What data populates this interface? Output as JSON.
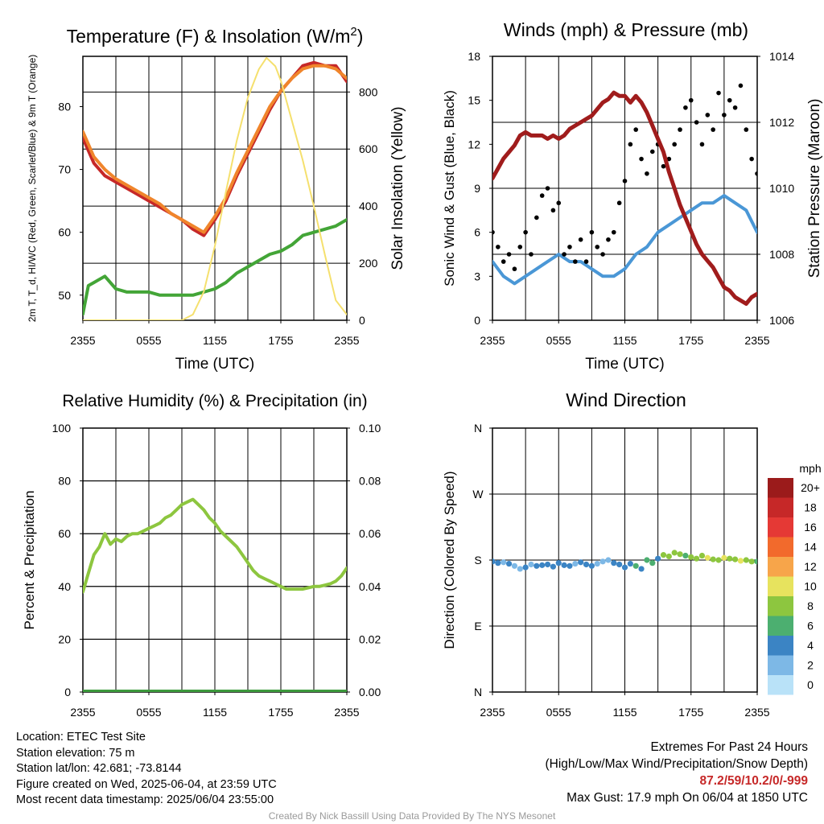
{
  "colors": {
    "temp": "#c62828",
    "windchill": "#d32f2f",
    "temp9m": "#f0852b",
    "dewpoint": "#43a537",
    "solar": "#f5e06e",
    "wind": "#4a97d6",
    "gust": "#000000",
    "pressure": "#a01c1c",
    "rh": "#8dc63f",
    "precip": "#3d9a3d"
  },
  "chart_data": [
    {
      "id": "temperature",
      "type": "line",
      "title": "Temperature (F) & Insolation (W/m²)",
      "xlabel": "Time (UTC)",
      "ylabel_left": "2m T, T_d, HI/WC (Red, Green, Scarlet/Blue) & 9m T (Orange)",
      "ylabel_right": "Solar Insolation (Yellow)",
      "x_ticks": [
        "2355",
        "0555",
        "1155",
        "1755",
        "2355"
      ],
      "x_hours": [
        0,
        24
      ],
      "ylim_left": [
        46,
        88
      ],
      "yticks_left": [
        50,
        60,
        70,
        80
      ],
      "ylim_right": [
        0,
        925
      ],
      "yticks_right": [
        0,
        200,
        400,
        600,
        800
      ],
      "series": [
        {
          "name": "2m T",
          "color_key": "temp",
          "axis": "left",
          "x": [
            0,
            1,
            2,
            3,
            4,
            5,
            6,
            7,
            8,
            9,
            10,
            11,
            12,
            13,
            14,
            15,
            16,
            17,
            18,
            19,
            20,
            21,
            22,
            23,
            24
          ],
          "y": [
            75,
            71,
            69,
            68,
            67,
            66,
            65,
            64,
            63,
            62,
            60.5,
            59.5,
            62,
            65,
            69,
            72.5,
            76,
            79.5,
            82.5,
            84.5,
            86.5,
            87,
            86.5,
            86.5,
            84
          ]
        },
        {
          "name": "9m T",
          "color_key": "temp9m",
          "axis": "left",
          "x": [
            0,
            1,
            2,
            3,
            4,
            5,
            6,
            7,
            8,
            9,
            10,
            11,
            12,
            13,
            14,
            15,
            16,
            17,
            18,
            19,
            20,
            21,
            22,
            23,
            24
          ],
          "y": [
            76,
            72,
            70,
            68.5,
            67.5,
            66.5,
            65.5,
            64.5,
            63,
            62,
            61,
            60,
            62.5,
            65.5,
            69.5,
            73,
            76.5,
            80,
            82.5,
            84.5,
            86,
            86.5,
            86.5,
            86,
            84.5
          ]
        },
        {
          "name": "2m Td",
          "color_key": "dewpoint",
          "axis": "left",
          "x": [
            0,
            0.5,
            1,
            2,
            3,
            4,
            5,
            6,
            7,
            8,
            9,
            10,
            11,
            12,
            13,
            14,
            15,
            16,
            17,
            18,
            19,
            20,
            21,
            22,
            23,
            24
          ],
          "y": [
            47,
            51.5,
            52,
            53,
            51,
            50.5,
            50.5,
            50.5,
            50,
            50,
            50,
            50,
            50.5,
            51,
            52,
            53.5,
            54.5,
            55.5,
            56.5,
            57,
            58,
            59.5,
            60,
            60.5,
            61,
            62
          ]
        },
        {
          "name": "Solar Insolation",
          "color_key": "solar",
          "axis": "right",
          "x": [
            0,
            9,
            10,
            11,
            12,
            13,
            14,
            15,
            16,
            16.7,
            17.5,
            18,
            19,
            20,
            21,
            22,
            23,
            24
          ],
          "y": [
            0,
            0,
            20,
            100,
            260,
            450,
            630,
            780,
            880,
            920,
            890,
            840,
            700,
            560,
            400,
            230,
            70,
            20
          ]
        }
      ]
    },
    {
      "id": "winds",
      "type": "line",
      "title": "Winds (mph) & Pressure (mb)",
      "xlabel": "Time (UTC)",
      "ylabel_left": "Sonic Wind & Gust (Blue, Black)",
      "ylabel_right": "Station Pressure (Maroon)",
      "x_ticks": [
        "2355",
        "0555",
        "1155",
        "1755",
        "2355"
      ],
      "ylim_left": [
        0,
        18
      ],
      "yticks_left": [
        0,
        3,
        6,
        9,
        12,
        15,
        18
      ],
      "ylim_right": [
        1006,
        1014
      ],
      "yticks_right": [
        1006,
        1008,
        1010,
        1012,
        1014
      ],
      "series": [
        {
          "name": "Sonic Wind",
          "color_key": "wind",
          "axis": "left",
          "x": [
            0,
            1,
            2,
            3,
            4,
            5,
            6,
            7,
            8,
            9,
            10,
            11,
            12,
            13,
            14,
            15,
            16,
            17,
            18,
            19,
            20,
            21,
            22,
            23,
            24
          ],
          "y": [
            4,
            3,
            2.5,
            3,
            3.5,
            4,
            4.5,
            4,
            4,
            3.5,
            3,
            3,
            3.5,
            4.5,
            5,
            6,
            6.5,
            7,
            7.5,
            8,
            8,
            8.5,
            8,
            7.5,
            6
          ]
        },
        {
          "name": "Gust",
          "color_key": "gust",
          "axis": "left",
          "style": "dots",
          "x": [
            0,
            0.5,
            1,
            1.5,
            2,
            2.5,
            3,
            3.5,
            4,
            4.5,
            5,
            5.5,
            6,
            6.5,
            7,
            7.5,
            8,
            8.5,
            9,
            9.5,
            10,
            10.5,
            11,
            11.5,
            12,
            12.5,
            13,
            13.5,
            14,
            14.5,
            15,
            15.5,
            16,
            16.5,
            17,
            17.5,
            18,
            18.5,
            19,
            19.5,
            20,
            20.5,
            21,
            21.5,
            22,
            22.5,
            23,
            23.5,
            24
          ],
          "y": [
            6,
            5,
            4,
            4.5,
            3.5,
            5,
            6,
            4.5,
            7,
            8.5,
            9,
            7.5,
            8,
            4.5,
            5,
            4,
            5.5,
            4,
            6,
            5,
            4.5,
            5.5,
            6,
            8,
            9.5,
            12,
            13,
            11,
            10,
            11.5,
            12,
            10.5,
            11,
            12,
            13,
            14.5,
            15,
            13.5,
            12,
            14,
            13,
            15.5,
            14,
            15,
            14.5,
            16,
            13,
            11,
            10
          ]
        },
        {
          "name": "Station Pressure",
          "color_key": "pressure",
          "axis": "right",
          "x": [
            0,
            0.5,
            1,
            1.5,
            2,
            2.5,
            3,
            3.5,
            4,
            4.5,
            5,
            5.5,
            6,
            6.5,
            7,
            7.5,
            8,
            8.5,
            9,
            9.5,
            10,
            10.5,
            11,
            11.5,
            12,
            12.5,
            13,
            13.5,
            14,
            14.5,
            15,
            15.5,
            16,
            16.5,
            17,
            17.5,
            18,
            18.5,
            19,
            19.5,
            20,
            20.5,
            21,
            21.5,
            22,
            22.5,
            23,
            23.5,
            24
          ],
          "y": [
            1010.3,
            1010.6,
            1010.9,
            1011.1,
            1011.3,
            1011.6,
            1011.7,
            1011.6,
            1011.6,
            1011.6,
            1011.5,
            1011.6,
            1011.5,
            1011.6,
            1011.8,
            1011.9,
            1012.0,
            1012.1,
            1012.2,
            1012.4,
            1012.6,
            1012.7,
            1012.9,
            1012.8,
            1012.8,
            1012.6,
            1012.8,
            1012.6,
            1012.3,
            1011.9,
            1011.5,
            1011.1,
            1010.5,
            1010.0,
            1009.5,
            1009.1,
            1008.7,
            1008.3,
            1008.0,
            1007.8,
            1007.6,
            1007.3,
            1007.0,
            1006.9,
            1006.7,
            1006.6,
            1006.5,
            1006.7,
            1006.8
          ]
        }
      ]
    },
    {
      "id": "humidity",
      "type": "line",
      "title": "Relative Humidity (%) & Precipitation (in)",
      "ylabel_left": "Percent & Precipitation",
      "x_ticks": [
        "2355",
        "0555",
        "1155",
        "1755",
        "2355"
      ],
      "ylim_left": [
        0,
        100
      ],
      "yticks_left": [
        0,
        20,
        40,
        60,
        80,
        100
      ],
      "ylim_right": [
        0,
        0.1
      ],
      "yticks_right": [
        "0.00",
        "0.02",
        "0.04",
        "0.06",
        "0.08",
        "0.10"
      ],
      "series": [
        {
          "name": "Relative Humidity",
          "color_key": "rh",
          "axis": "left",
          "x": [
            0,
            0.5,
            1,
            1.5,
            2,
            2.5,
            3,
            3.5,
            4,
            4.5,
            5,
            5.5,
            6,
            6.5,
            7,
            7.5,
            8,
            8.5,
            9,
            9.5,
            10,
            10.5,
            11,
            11.5,
            12,
            12.5,
            13,
            13.5,
            14,
            14.5,
            15,
            15.5,
            16,
            16.5,
            17,
            17.5,
            18,
            18.5,
            19,
            19.5,
            20,
            20.5,
            21,
            21.5,
            22,
            22.5,
            23,
            23.5,
            24
          ],
          "y": [
            38,
            45,
            52,
            55,
            60,
            56,
            58,
            57,
            59,
            60,
            60,
            61,
            62,
            63,
            64,
            66,
            67,
            69,
            71,
            72,
            73,
            71,
            69,
            66,
            64,
            61,
            59,
            57,
            55,
            52,
            49,
            46,
            44,
            43,
            42,
            41,
            40,
            39,
            39,
            39,
            39,
            39.5,
            40,
            40,
            40.5,
            41,
            42,
            44,
            47
          ]
        },
        {
          "name": "Precipitation",
          "color_key": "precip",
          "axis": "right",
          "x": [
            0,
            24
          ],
          "y": [
            0,
            0
          ]
        }
      ]
    },
    {
      "id": "wind_direction",
      "type": "scatter",
      "title": "Wind Direction",
      "ylabel_left": "Direction (Colored By Speed)",
      "x_ticks": [
        "2355",
        "0555",
        "1155",
        "1755",
        "2355"
      ],
      "y_ticks": [
        "N",
        "E",
        "S",
        "W",
        "N"
      ],
      "ylim": [
        0,
        360
      ],
      "legend_title": "mph",
      "legend_labels": [
        "20+",
        "18",
        "16",
        "14",
        "12",
        "10",
        "8",
        "6",
        "4",
        "2",
        "0"
      ],
      "legend_colors": [
        "#9b1b1b",
        "#c62828",
        "#e53935",
        "#f26a2c",
        "#f7a54a",
        "#e7e35e",
        "#8dc63f",
        "#4caf70",
        "#3b84c4",
        "#7db8e6",
        "#b9e2f8"
      ],
      "series": [
        {
          "name": "Direction",
          "axis": "left",
          "x": [
            0,
            0.5,
            1,
            1.5,
            2,
            2.5,
            3,
            3.5,
            4,
            4.5,
            5,
            5.5,
            6,
            6.5,
            7,
            7.5,
            8,
            8.5,
            9,
            9.5,
            10,
            10.5,
            11,
            11.5,
            12,
            12.5,
            13,
            13.5,
            14,
            14.5,
            15,
            15.5,
            16,
            16.5,
            17,
            17.5,
            18,
            18.5,
            19,
            19.5,
            20,
            20.5,
            21,
            21.5,
            22,
            22.5,
            23,
            23.5,
            24
          ],
          "y": [
            178,
            176,
            177,
            175,
            172,
            168,
            170,
            174,
            172,
            173,
            174,
            171,
            176,
            173,
            172,
            175,
            177,
            174,
            172,
            175,
            178,
            180,
            176,
            174,
            170,
            175,
            172,
            168,
            180,
            176,
            182,
            187,
            185,
            190,
            188,
            186,
            184,
            182,
            186,
            183,
            181,
            180,
            183,
            182,
            181,
            179,
            180,
            178,
            178
          ],
          "speed": [
            4,
            3,
            2,
            3,
            2,
            2,
            3,
            2,
            4,
            4,
            3,
            4,
            4,
            3,
            4,
            2,
            3,
            4,
            3,
            2,
            2,
            2,
            3,
            4,
            3,
            4,
            5,
            4,
            5,
            6,
            4,
            7,
            8,
            7,
            8,
            6,
            7,
            8,
            8,
            9,
            8,
            7,
            9,
            8,
            8,
            10,
            7,
            8,
            6
          ]
        }
      ]
    }
  ],
  "info": {
    "location": "Location: ETEC Test Site",
    "elevation": "Station elevation: 75 m",
    "latlon": "Station lat/lon: 42.681; -73.8144",
    "created": "Figure created on Wed, 2025-06-04, at 23:59 UTC",
    "recent": "Most recent data timestamp: 2025/06/04 23:55:00"
  },
  "extremes": {
    "title": "Extremes For Past 24 Hours",
    "subtitle": "(High/Low/Max Wind/Precipitation/Snow Depth)",
    "values": "87.2/59/10.2/0/-999",
    "gust": "Max Gust: 17.9 mph On 06/04 at 1850 UTC"
  },
  "credit": "Created By Nick Bassill Using Data Provided By The NYS Mesonet"
}
